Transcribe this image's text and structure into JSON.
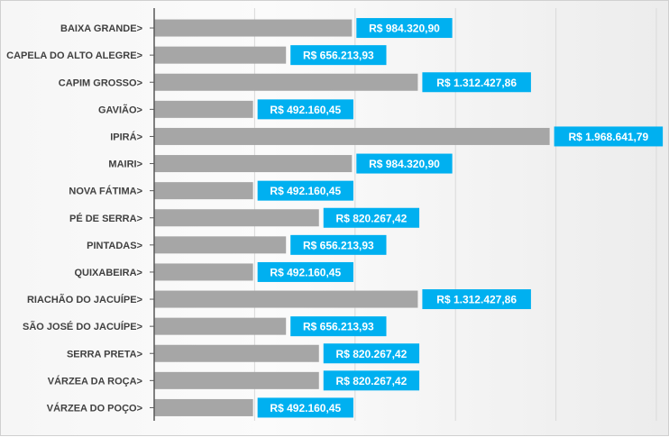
{
  "chart_data": {
    "type": "bar",
    "orientation": "horizontal",
    "categories": [
      "BAIXA GRANDE>",
      "CAPELA DO ALTO ALEGRE>",
      "CAPIM GROSSO>",
      "GAVIÃO>",
      "IPIRÁ>",
      "MAIRI>",
      "NOVA FÁTIMA>",
      "PÉ DE SERRA>",
      "PINTADAS>",
      "QUIXABEIRA>",
      "RIACHÃO DO JACUÍPE>",
      "SÃO JOSÉ DO JACUÍPE>",
      "SERRA PRETA>",
      "VÁRZEA DA ROÇA>",
      "VÁRZEA DO POÇO>"
    ],
    "values": [
      984320.9,
      656213.93,
      1312427.86,
      492160.45,
      1968641.79,
      984320.9,
      492160.45,
      820267.42,
      656213.93,
      492160.45,
      1312427.86,
      656213.93,
      820267.42,
      820267.42,
      492160.45
    ],
    "value_labels": [
      "R$ 984.320,90",
      "R$ 656.213,93",
      "R$ 1.312.427,86",
      "R$ 492.160,45",
      "R$ 1.968.641,79",
      "R$ 984.320,90",
      "R$ 492.160,45",
      "R$ 820.267,42",
      "R$ 656.213,93",
      "R$ 492.160,45",
      "R$ 1.312.427,86",
      "R$ 656.213,93",
      "R$ 820.267,42",
      "R$ 820.267,42",
      "R$ 492.160,45"
    ],
    "xlim": [
      0,
      2500000
    ],
    "x_gridlines": [
      0,
      500000,
      1000000,
      1500000,
      2000000,
      2500000
    ],
    "grid": true,
    "title": "",
    "xlabel": "",
    "ylabel": "",
    "colors": {
      "bar": "#a6a6a6",
      "label_bg": "#00b0f0",
      "label_text": "#ffffff",
      "category_text": "#404040",
      "gridline": "#d9d9d9",
      "axis": "#595959"
    }
  }
}
